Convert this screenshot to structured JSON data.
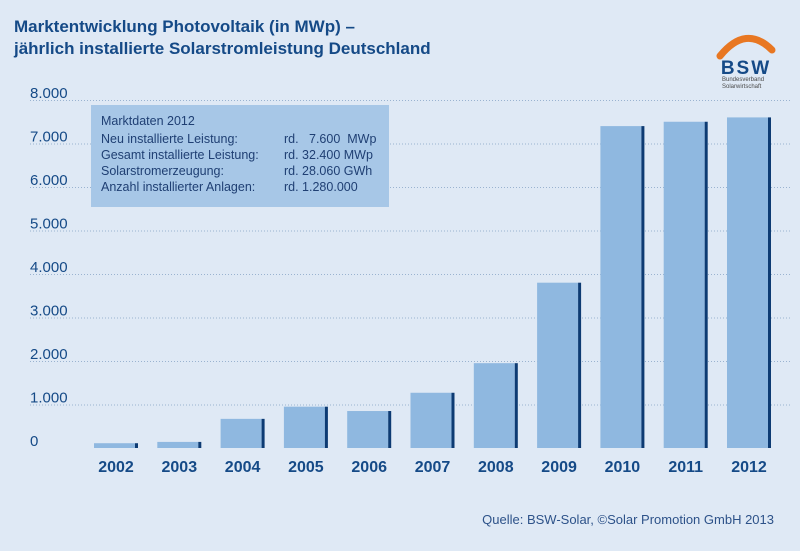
{
  "header": {
    "title_line1": "Marktentwicklung Photovoltaik (in MWp) –",
    "title_line2": "jährlich installierte Solarstromleistung Deutschland"
  },
  "logo": {
    "text": "BSW",
    "subtitle_line1": "Bundesverband",
    "subtitle_line2": "Solarwirtschaft",
    "colors": {
      "arc": "#e87722",
      "text": "#154a87"
    }
  },
  "info_box": {
    "title": "Marktdaten 2012",
    "rows": [
      {
        "label": "Neu installierte Leistung:",
        "value": "rd.   7.600  MWp"
      },
      {
        "label": "Gesamt installierte Leistung:",
        "value": "rd. 32.400 MWp"
      },
      {
        "label": "Solarstromerzeugung:",
        "value": "rd. 28.060 GWh"
      },
      {
        "label": "Anzahl installierter Anlagen:",
        "value": "rd. 1.280.000"
      }
    ]
  },
  "source": "Quelle: BSW-Solar, ©Solar Promotion GmbH 2013",
  "colors": {
    "background": "#dfe9f5",
    "bar_fill": "#8fb8e0",
    "bar_edge": "#0d3b73",
    "axis_text": "#154a87",
    "grid": "#9ab3d0"
  },
  "chart_data": {
    "type": "bar",
    "title": "Marktentwicklung Photovoltaik (in MWp) – jährlich installierte Solarstromleistung Deutschland",
    "categories": [
      "2002",
      "2003",
      "2004",
      "2005",
      "2006",
      "2007",
      "2008",
      "2009",
      "2010",
      "2011",
      "2012"
    ],
    "values": [
      110,
      140,
      670,
      950,
      850,
      1270,
      1950,
      3800,
      7400,
      7500,
      7600
    ],
    "y_ticks": [
      "0",
      "1.000",
      "2.000",
      "3.000",
      "4.000",
      "5.000",
      "6.000",
      "7.000",
      "8.000"
    ],
    "ylim": [
      0,
      8000
    ],
    "grid": true,
    "xlabel": "",
    "ylabel": ""
  }
}
